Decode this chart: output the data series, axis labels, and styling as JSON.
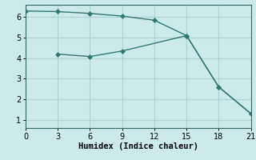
{
  "line1_x": [
    0,
    3,
    6,
    9,
    12,
    15,
    18,
    21
  ],
  "line1_y": [
    6.3,
    6.27,
    6.18,
    6.05,
    5.85,
    5.1,
    2.6,
    1.3
  ],
  "line2_x": [
    3,
    6,
    9,
    15,
    18,
    21
  ],
  "line2_y": [
    4.2,
    4.08,
    4.35,
    5.1,
    2.6,
    1.3
  ],
  "line_color": "#317a72",
  "bg_color": "#cceaea",
  "grid_color": "#aad4d4",
  "xlabel": "Humidex (Indice chaleur)",
  "xlim": [
    0,
    21
  ],
  "ylim": [
    0.6,
    6.6
  ],
  "xticks": [
    0,
    3,
    6,
    9,
    12,
    15,
    18,
    21
  ],
  "yticks": [
    1,
    2,
    3,
    4,
    5,
    6
  ],
  "markersize": 3,
  "linewidth": 1.0,
  "xlabel_fontsize": 7.5,
  "tick_fontsize": 7
}
